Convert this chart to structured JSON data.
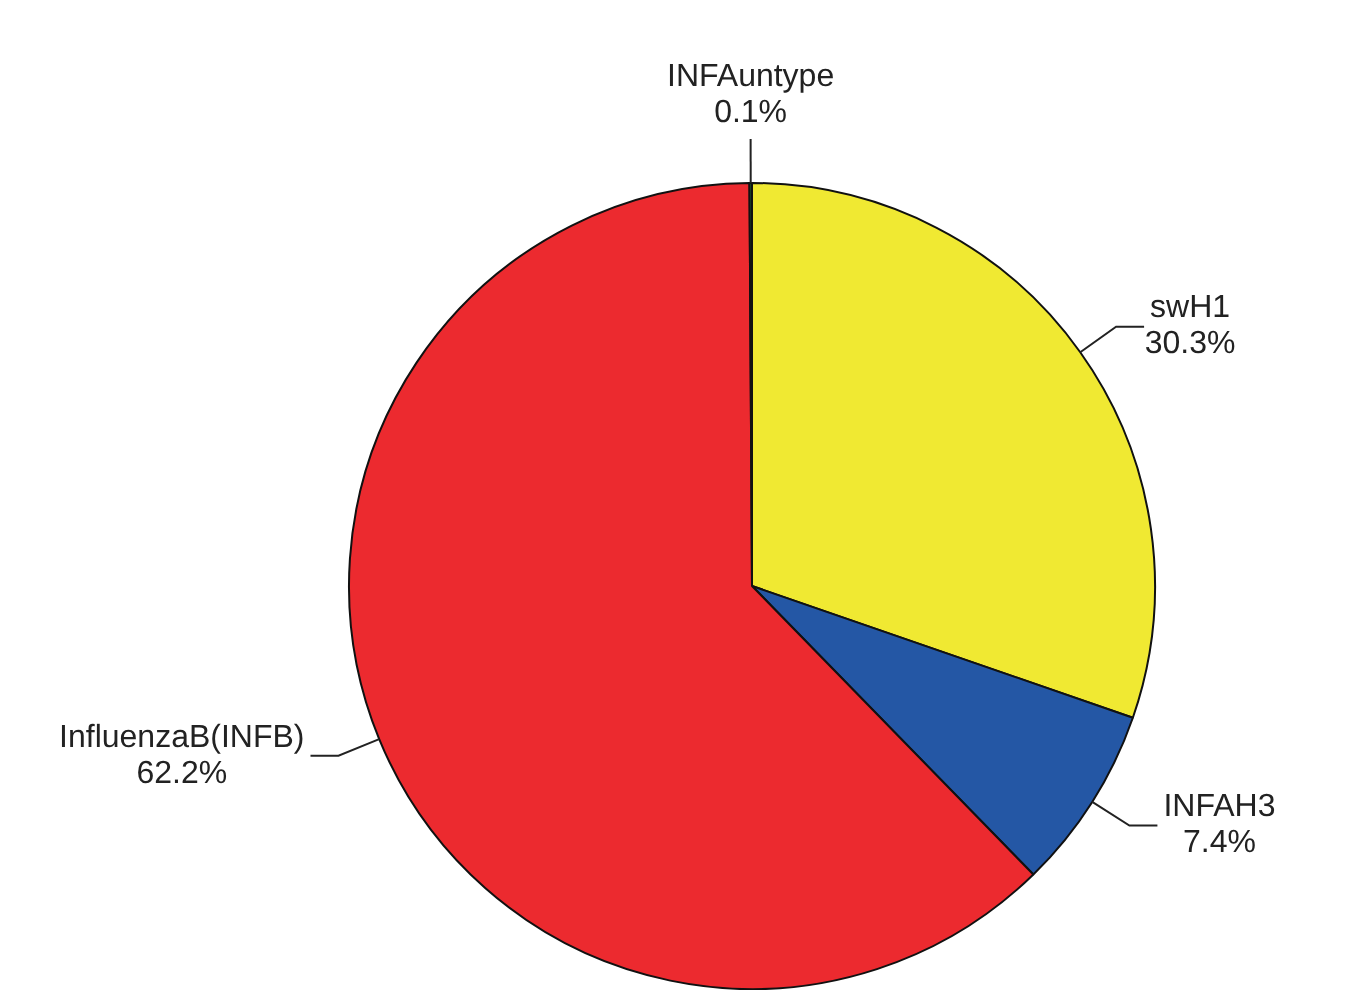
{
  "chart_data": {
    "type": "pie",
    "categories": [
      "swH1",
      "INFAH3",
      "InfluenzaB(INFB)",
      "INFAuntype"
    ],
    "values": [
      30.3,
      7.4,
      62.2,
      0.1
    ],
    "value_labels": [
      "30.3%",
      "7.4%",
      "62.2%",
      "0.1%"
    ],
    "colors": [
      "#f0e932",
      "#2457a5",
      "#ec2a2f",
      "#1d6b3c"
    ],
    "legend": false
  }
}
